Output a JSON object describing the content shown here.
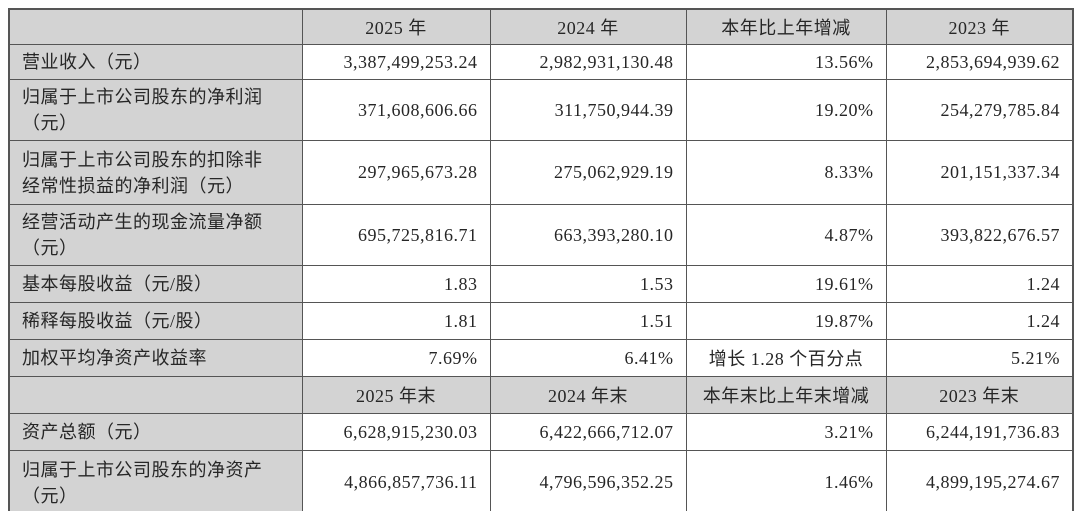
{
  "colors": {
    "header_and_label_bg": "#d3d3d3",
    "border": "#555555",
    "text": "#262626",
    "cell_bg": "#ffffff"
  },
  "table": {
    "rows": [
      {
        "kind": "header",
        "cells": [
          "",
          "2025 年",
          "2024 年",
          "本年比上年增减",
          "2023 年"
        ]
      },
      {
        "kind": "data",
        "cells": [
          "营业收入（元）",
          "3,387,499,253.24",
          "2,982,931,130.48",
          "13.56%",
          "2,853,694,939.62"
        ]
      },
      {
        "kind": "data",
        "cells": [
          "归属于上市公司股东的净利润\n（元）",
          "371,608,606.66",
          "311,750,944.39",
          "19.20%",
          "254,279,785.84"
        ]
      },
      {
        "kind": "data",
        "cells": [
          "归属于上市公司股东的扣除非\n经常性损益的净利润（元）",
          "297,965,673.28",
          "275,062,929.19",
          "8.33%",
          "201,151,337.34"
        ]
      },
      {
        "kind": "data",
        "cells": [
          "经营活动产生的现金流量净额\n（元）",
          "695,725,816.71",
          "663,393,280.10",
          "4.87%",
          "393,822,676.57"
        ]
      },
      {
        "kind": "data",
        "cells": [
          "基本每股收益（元/股）",
          "1.83",
          "1.53",
          "19.61%",
          "1.24"
        ]
      },
      {
        "kind": "data",
        "cells": [
          "稀释每股收益（元/股）",
          "1.81",
          "1.51",
          "19.87%",
          "1.24"
        ]
      },
      {
        "kind": "data",
        "cells": [
          "加权平均净资产收益率",
          "7.69%",
          "6.41%",
          "增长 1.28 个百分点",
          "5.21%"
        ]
      },
      {
        "kind": "header",
        "cells": [
          "",
          "2025 年末",
          "2024 年末",
          "本年末比上年末增减",
          "2023 年末"
        ]
      },
      {
        "kind": "data",
        "cells": [
          "资产总额（元）",
          "6,628,915,230.03",
          "6,422,666,712.07",
          "3.21%",
          "6,244,191,736.83"
        ]
      },
      {
        "kind": "data",
        "cells": [
          "归属于上市公司股东的净资产\n（元）",
          "4,866,857,736.11",
          "4,796,596,352.25",
          "1.46%",
          "4,899,195,274.67"
        ]
      }
    ]
  }
}
